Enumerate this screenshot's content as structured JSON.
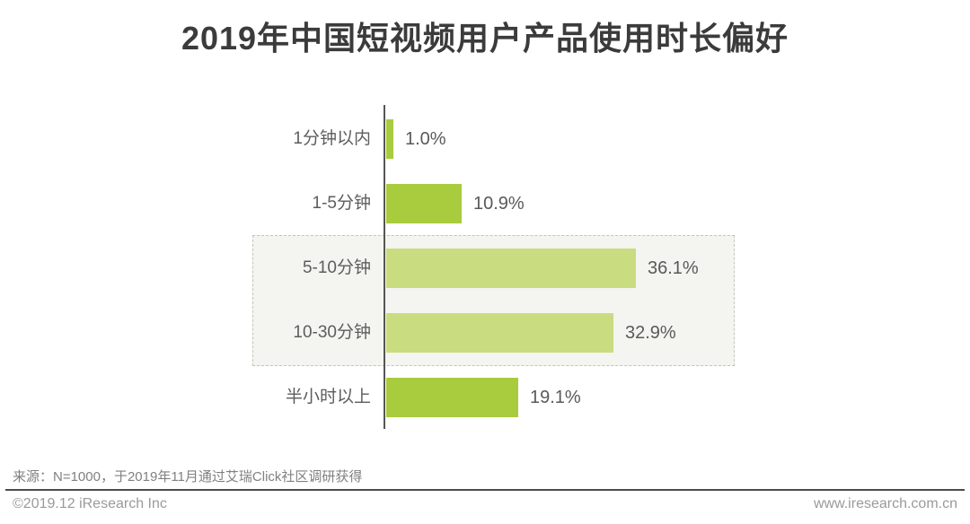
{
  "title": "2019年中国短视频用户产品使用时长偏好",
  "source_note": "来源：N=1000，于2019年11月通过艾瑞Click社区调研获得",
  "footer": {
    "copyright": "©2019.12 iResearch Inc",
    "website": "www.iresearch.com.cn"
  },
  "colors": {
    "bar_default": "#a9cb3e",
    "bar_highlight": "#cadc80",
    "axis": "#555555",
    "highlight_box_bg": "#f4f4f0",
    "highlight_box_border": "#c5c4bd",
    "title_text": "#3b3b3b",
    "label_text": "#5d5d5d",
    "footer_text": "#9a9a9a"
  },
  "chart_data": {
    "type": "bar",
    "orientation": "horizontal",
    "title": "2019年中国短视频用户产品使用时长偏好",
    "categories": [
      "1分钟以内",
      "1-5分钟",
      "5-10分钟",
      "10-30分钟",
      "半小时以上"
    ],
    "values": [
      1.0,
      10.9,
      36.1,
      32.9,
      19.1
    ],
    "value_labels": [
      "1.0%",
      "10.9%",
      "36.1%",
      "32.9%",
      "19.1%"
    ],
    "unit": "%",
    "highlighted": [
      false,
      false,
      true,
      true,
      false
    ],
    "highlight_note": "5-10分钟与10-30分钟两档以虚线框突出显示",
    "xlim": [
      0,
      46
    ],
    "grid": false,
    "legend": false
  }
}
